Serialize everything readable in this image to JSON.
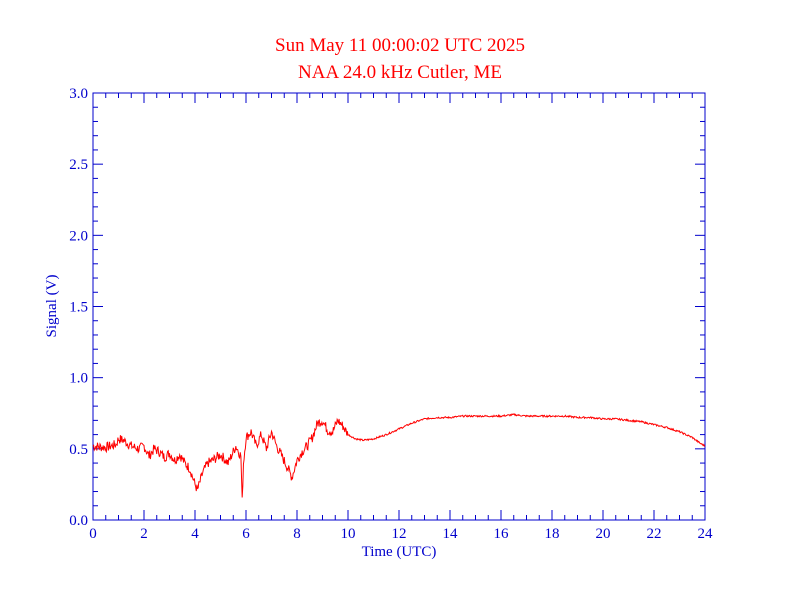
{
  "chart_data": {
    "type": "line",
    "title": "Sun May 11 00:00:02 UTC 2025",
    "subtitle": "NAA 24.0 kHz Cutler, ME",
    "xlabel": "Time (UTC)",
    "ylabel": "Signal (V)",
    "xlim": [
      0,
      24
    ],
    "ylim": [
      0,
      3
    ],
    "xticks": [
      "0",
      "2",
      "4",
      "6",
      "8",
      "10",
      "12",
      "14",
      "16",
      "18",
      "20",
      "22",
      "24"
    ],
    "yticks": [
      "0.0",
      "0.5",
      "1.0",
      "1.5",
      "2.0",
      "2.5",
      "3.0"
    ],
    "grid": false,
    "legend": "none",
    "colors": {
      "title": "#ff0000",
      "axes": "#0000cc",
      "line": "#ff0000"
    },
    "series": [
      {
        "x": [
          0,
          0.5,
          0.9,
          1.0,
          1.2,
          1.5,
          1.8,
          2.0,
          2.2,
          2.4,
          2.6,
          2.8,
          3.0,
          3.2,
          3.4,
          3.6,
          3.8,
          4.0,
          4.1,
          4.3,
          4.5,
          4.7,
          5.0,
          5.3,
          5.6,
          5.8,
          5.85,
          5.9,
          6.0,
          6.2,
          6.4,
          6.6,
          6.8,
          7.0,
          7.2,
          7.4,
          7.6,
          7.8,
          7.9,
          8.0,
          8.2,
          8.4,
          8.6,
          8.8,
          9.0,
          9.2,
          9.4,
          9.6,
          9.8,
          10.0,
          10.3,
          10.6,
          11.0,
          11.5,
          12.0,
          12.5,
          13.0,
          13.5,
          14.0,
          14.5,
          15.0,
          15.5,
          16.0,
          16.5,
          17.0,
          17.5,
          18.0,
          18.5,
          19.0,
          19.5,
          20.0,
          20.5,
          21.0,
          21.5,
          22.0,
          22.5,
          23.0,
          23.5,
          23.8,
          24.0
        ],
        "y": [
          0.52,
          0.51,
          0.53,
          0.57,
          0.56,
          0.52,
          0.5,
          0.52,
          0.45,
          0.5,
          0.48,
          0.44,
          0.47,
          0.42,
          0.46,
          0.4,
          0.36,
          0.25,
          0.21,
          0.33,
          0.4,
          0.42,
          0.46,
          0.4,
          0.52,
          0.45,
          0.13,
          0.4,
          0.58,
          0.62,
          0.52,
          0.6,
          0.5,
          0.62,
          0.52,
          0.45,
          0.38,
          0.3,
          0.36,
          0.42,
          0.48,
          0.52,
          0.58,
          0.68,
          0.7,
          0.63,
          0.62,
          0.7,
          0.66,
          0.6,
          0.57,
          0.56,
          0.57,
          0.6,
          0.64,
          0.68,
          0.71,
          0.72,
          0.72,
          0.73,
          0.73,
          0.73,
          0.73,
          0.74,
          0.73,
          0.73,
          0.73,
          0.73,
          0.72,
          0.72,
          0.71,
          0.71,
          0.7,
          0.69,
          0.67,
          0.65,
          0.62,
          0.58,
          0.54,
          0.52
        ]
      }
    ]
  }
}
